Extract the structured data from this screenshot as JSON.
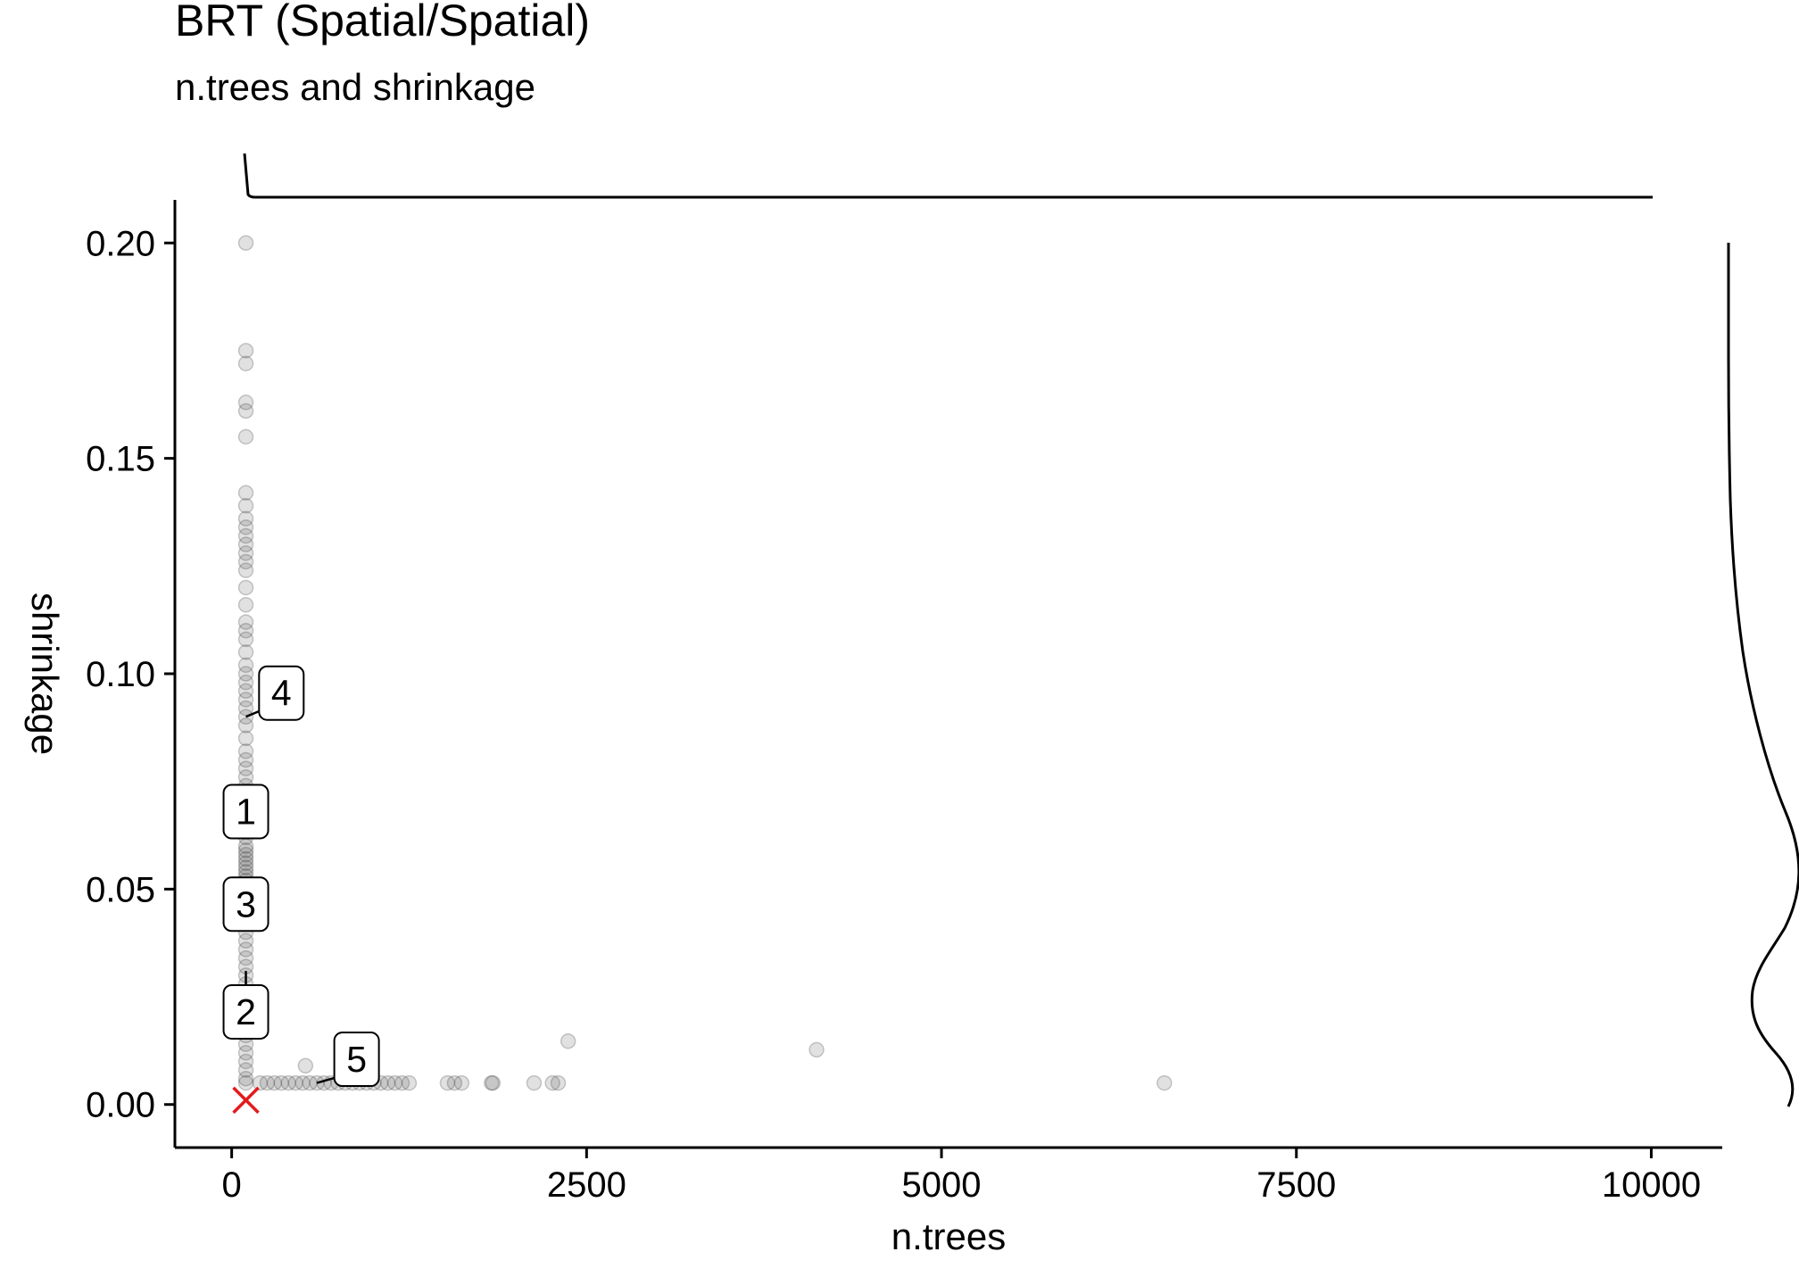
{
  "chart_data": {
    "type": "scatter",
    "title": "BRT (Spatial/Spatial)",
    "subtitle": "n.trees and shrinkage",
    "xlabel": "n.trees",
    "ylabel": "shrinkage",
    "xlim": [
      -400,
      10500
    ],
    "ylim": [
      -0.01,
      0.21
    ],
    "x_ticks": [
      0,
      2500,
      5000,
      7500,
      10000
    ],
    "x_tick_labels": [
      "0",
      "2500",
      "5000",
      "7500",
      "10000"
    ],
    "y_ticks": [
      0.0,
      0.05,
      0.1,
      0.15,
      0.2
    ],
    "y_tick_labels": [
      "0.00",
      "0.05",
      "0.10",
      "0.15",
      "0.20"
    ],
    "grid": false,
    "marginal_density": {
      "top": "n.trees",
      "right": "shrinkage"
    },
    "colors": {
      "points": "#333333",
      "best_marker": "#e41a1c",
      "axis": "#000000"
    },
    "points": [
      {
        "x": 100,
        "y": 0.2
      },
      {
        "x": 100,
        "y": 0.175
      },
      {
        "x": 100,
        "y": 0.172
      },
      {
        "x": 100,
        "y": 0.163
      },
      {
        "x": 100,
        "y": 0.161
      },
      {
        "x": 100,
        "y": 0.155
      },
      {
        "x": 100,
        "y": 0.142
      },
      {
        "x": 100,
        "y": 0.139
      },
      {
        "x": 100,
        "y": 0.136
      },
      {
        "x": 100,
        "y": 0.134
      },
      {
        "x": 100,
        "y": 0.132
      },
      {
        "x": 100,
        "y": 0.13
      },
      {
        "x": 100,
        "y": 0.128
      },
      {
        "x": 100,
        "y": 0.126
      },
      {
        "x": 100,
        "y": 0.124
      },
      {
        "x": 100,
        "y": 0.12
      },
      {
        "x": 100,
        "y": 0.116
      },
      {
        "x": 100,
        "y": 0.112
      },
      {
        "x": 100,
        "y": 0.11
      },
      {
        "x": 100,
        "y": 0.108
      },
      {
        "x": 100,
        "y": 0.105
      },
      {
        "x": 100,
        "y": 0.102
      },
      {
        "x": 100,
        "y": 0.1
      },
      {
        "x": 100,
        "y": 0.098
      },
      {
        "x": 100,
        "y": 0.096
      },
      {
        "x": 100,
        "y": 0.094
      },
      {
        "x": 100,
        "y": 0.092
      },
      {
        "x": 100,
        "y": 0.09
      },
      {
        "x": 100,
        "y": 0.088
      },
      {
        "x": 100,
        "y": 0.085
      },
      {
        "x": 100,
        "y": 0.082
      },
      {
        "x": 100,
        "y": 0.08
      },
      {
        "x": 100,
        "y": 0.078
      },
      {
        "x": 100,
        "y": 0.076
      },
      {
        "x": 100,
        "y": 0.074
      },
      {
        "x": 100,
        "y": 0.072
      },
      {
        "x": 100,
        "y": 0.07
      },
      {
        "x": 100,
        "y": 0.068
      },
      {
        "x": 100,
        "y": 0.066
      },
      {
        "x": 100,
        "y": 0.064
      },
      {
        "x": 100,
        "y": 0.062
      },
      {
        "x": 100,
        "y": 0.06
      },
      {
        "x": 100,
        "y": 0.059
      },
      {
        "x": 100,
        "y": 0.058
      },
      {
        "x": 100,
        "y": 0.057
      },
      {
        "x": 100,
        "y": 0.056
      },
      {
        "x": 100,
        "y": 0.055
      },
      {
        "x": 100,
        "y": 0.054
      },
      {
        "x": 100,
        "y": 0.053
      },
      {
        "x": 100,
        "y": 0.052
      },
      {
        "x": 100,
        "y": 0.051
      },
      {
        "x": 100,
        "y": 0.05
      },
      {
        "x": 100,
        "y": 0.049
      },
      {
        "x": 100,
        "y": 0.048
      },
      {
        "x": 100,
        "y": 0.047
      },
      {
        "x": 100,
        "y": 0.046
      },
      {
        "x": 100,
        "y": 0.045
      },
      {
        "x": 100,
        "y": 0.044
      },
      {
        "x": 100,
        "y": 0.042
      },
      {
        "x": 100,
        "y": 0.04
      },
      {
        "x": 100,
        "y": 0.038
      },
      {
        "x": 100,
        "y": 0.036
      },
      {
        "x": 100,
        "y": 0.034
      },
      {
        "x": 100,
        "y": 0.032
      },
      {
        "x": 100,
        "y": 0.03
      },
      {
        "x": 100,
        "y": 0.028
      },
      {
        "x": 100,
        "y": 0.026
      },
      {
        "x": 100,
        "y": 0.024
      },
      {
        "x": 100,
        "y": 0.022
      },
      {
        "x": 100,
        "y": 0.02
      },
      {
        "x": 100,
        "y": 0.018
      },
      {
        "x": 100,
        "y": 0.016
      },
      {
        "x": 100,
        "y": 0.014
      },
      {
        "x": 100,
        "y": 0.012
      },
      {
        "x": 100,
        "y": 0.01
      },
      {
        "x": 100,
        "y": 0.008
      },
      {
        "x": 100,
        "y": 0.006
      },
      {
        "x": 100,
        "y": 0.005
      },
      {
        "x": 200,
        "y": 0.005
      },
      {
        "x": 250,
        "y": 0.005
      },
      {
        "x": 300,
        "y": 0.005
      },
      {
        "x": 350,
        "y": 0.005
      },
      {
        "x": 400,
        "y": 0.005
      },
      {
        "x": 450,
        "y": 0.005
      },
      {
        "x": 500,
        "y": 0.005
      },
      {
        "x": 550,
        "y": 0.005
      },
      {
        "x": 600,
        "y": 0.005
      },
      {
        "x": 650,
        "y": 0.005
      },
      {
        "x": 700,
        "y": 0.005
      },
      {
        "x": 750,
        "y": 0.005
      },
      {
        "x": 800,
        "y": 0.005
      },
      {
        "x": 850,
        "y": 0.005
      },
      {
        "x": 900,
        "y": 0.005
      },
      {
        "x": 950,
        "y": 0.005
      },
      {
        "x": 1000,
        "y": 0.005
      },
      {
        "x": 1050,
        "y": 0.005
      },
      {
        "x": 1100,
        "y": 0.005
      },
      {
        "x": 1150,
        "y": 0.005
      },
      {
        "x": 1200,
        "y": 0.005
      },
      {
        "x": 1250,
        "y": 0.005
      },
      {
        "x": 1520,
        "y": 0.005
      },
      {
        "x": 1570,
        "y": 0.005
      },
      {
        "x": 1620,
        "y": 0.005
      },
      {
        "x": 1830,
        "y": 0.005
      },
      {
        "x": 1840,
        "y": 0.005
      },
      {
        "x": 2130,
        "y": 0.005
      },
      {
        "x": 2260,
        "y": 0.005
      },
      {
        "x": 2300,
        "y": 0.005
      },
      {
        "x": 520,
        "y": 0.009
      },
      {
        "x": 2370,
        "y": 0.0147
      },
      {
        "x": 4120,
        "y": 0.0127
      },
      {
        "x": 6570,
        "y": 0.005
      }
    ],
    "best": {
      "x": 100,
      "y": 0.001,
      "marker": "x"
    },
    "labels": [
      {
        "text": "1",
        "x": 100,
        "y": 0.068
      },
      {
        "text": "2",
        "x": 100,
        "y": 0.0215
      },
      {
        "text": "3",
        "x": 100,
        "y": 0.0465
      },
      {
        "text": "4",
        "x": 350,
        "y": 0.0955
      },
      {
        "text": "5",
        "x": 880,
        "y": 0.0105
      }
    ],
    "label_leaders": [
      {
        "label": "2",
        "from": [
          100,
          0.0265
        ],
        "to": [
          100,
          0.031
        ]
      },
      {
        "label": "4",
        "from": [
          280,
          0.0925
        ],
        "to": [
          100,
          0.09
        ]
      },
      {
        "label": "5",
        "from": [
          760,
          0.0065
        ],
        "to": [
          600,
          0.005
        ]
      }
    ]
  }
}
